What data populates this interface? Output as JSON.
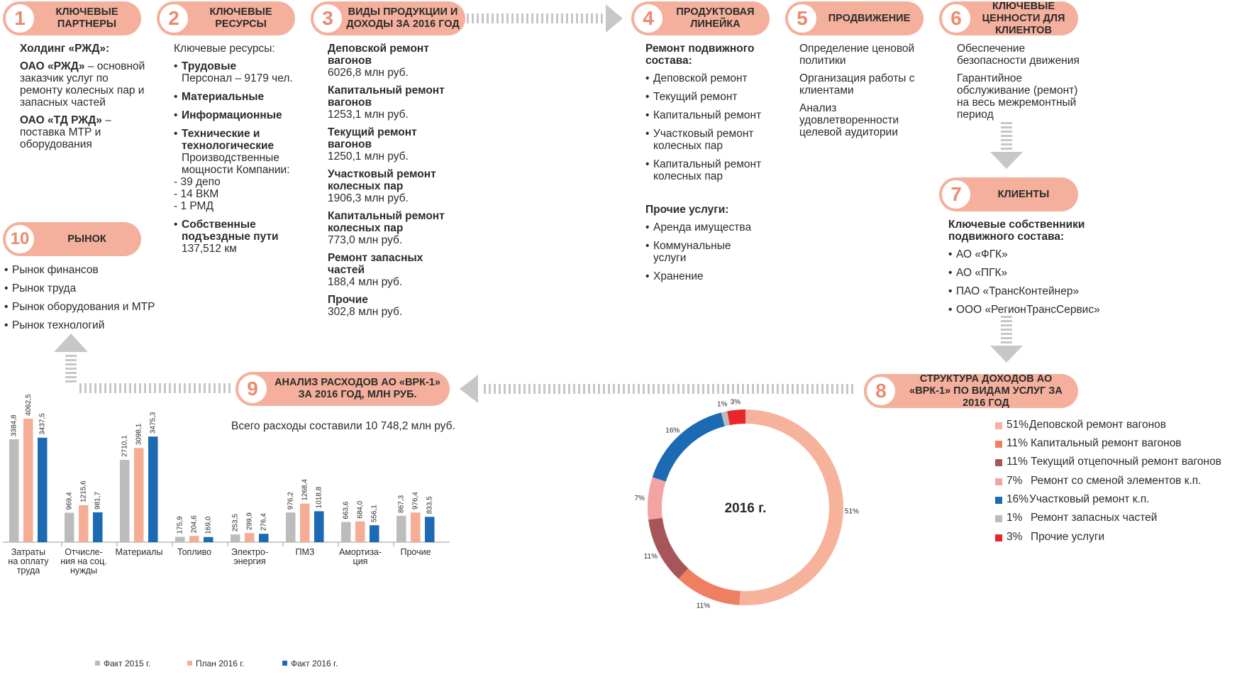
{
  "colors": {
    "accent": "#f4b09c",
    "accent_dark": "#ec8a6e",
    "arrow": "#c7c7c7",
    "fact2015": "#bcbcbc",
    "plan2016": "#f5ad95",
    "fact2016": "#1b6ab3"
  },
  "blocks": [
    {
      "num": "1",
      "title": "КЛЮЧЕВЫЕ ПАРТНЕРЫ"
    },
    {
      "num": "2",
      "title": "КЛЮЧЕВЫЕ РЕСУРСЫ"
    },
    {
      "num": "3",
      "title": "ВИДЫ ПРОДУКЦИИ И ДОХОДЫ ЗА 2016 ГОД"
    },
    {
      "num": "4",
      "title": "ПРОДУКТОВАЯ ЛИНЕЙКА"
    },
    {
      "num": "5",
      "title": "ПРОДВИЖЕНИЕ"
    },
    {
      "num": "6",
      "title": "КЛЮЧЕВЫЕ ЦЕННОСТИ ДЛЯ КЛИЕНТОВ"
    },
    {
      "num": "7",
      "title": "КЛИЕНТЫ"
    },
    {
      "num": "8",
      "title": "СТРУКТУРА ДОХОДОВ АО «ВРК-1» ПО ВИДАМ УСЛУГ ЗА 2016 ГОД"
    },
    {
      "num": "9",
      "title": "АНАЛИЗ РАСХОДОВ АО «ВРК-1» ЗА 2016 ГОД, МЛН РУБ."
    },
    {
      "num": "10",
      "title": "РЫНОК"
    }
  ],
  "partners": {
    "holding": "Холдинг «РЖД»:",
    "p1_name": "ОАО «РЖД»",
    "p1_desc": "– основной заказчик услуг по ремонту колесных пар и запасных частей",
    "p2_name": "ОАО «ТД РЖД»",
    "p2_desc": "– поставка МТР и оборудования"
  },
  "resources": {
    "intro": "Ключевые ресурсы:",
    "labor": "Трудовые",
    "staff": "Персонал – 9179 чел.",
    "material": "Материальные",
    "info": "Информационные",
    "tech": "Технические и технологические",
    "capacity": "Производственные мощности Компании:",
    "cap_items": [
      "39 депо",
      "14 ВКМ",
      "1   РМД"
    ],
    "tracks": "Собственные подъездные пути",
    "tracks_val": "137,512 км"
  },
  "products": [
    {
      "name": "Деповской ремонт вагонов",
      "value": "6026,8 млн руб."
    },
    {
      "name": "Капитальный ремонт вагонов",
      "value": "1253,1 млн руб."
    },
    {
      "name": "Текущий ремонт вагонов",
      "value": "1250,1 млн руб."
    },
    {
      "name": "Участковый ремонт колесных пар",
      "value": "1906,3 млн руб."
    },
    {
      "name": "Капитальный ремонт колесных пар",
      "value": "773,0 млн руб."
    },
    {
      "name": "Ремонт запасных частей",
      "value": "188,4 млн руб."
    },
    {
      "name": "Прочие",
      "value": "302,8 млн руб."
    }
  ],
  "lineup": {
    "heading": "Ремонт подвижного состава:",
    "items": [
      "Деповской ремонт",
      "Текущий ремонт",
      "Капитальный ремонт",
      "Участковый ремонт колесных пар",
      "Капитальный ремонт колесных пар"
    ],
    "other_heading": "Прочие услуги:",
    "other_items": [
      "Аренда имущества",
      "Коммунальные услуги",
      "Хранение"
    ]
  },
  "promotion": [
    "Определение ценовой политики",
    "Организация работы с клиентами",
    "Анализ удовлетворенности целевой аудитории"
  ],
  "values": [
    "Обеспечение безопасности движения",
    "Гарантийное обслуживание (ремонт) на весь межремонтный период"
  ],
  "clients": {
    "heading": "Ключевые собственники подвижного состава:",
    "items": [
      "АО «ФГК»",
      "АО «ПГК»",
      "ПАО «ТрансКонтейнер»",
      "ООО «РегионТрансСервис»"
    ]
  },
  "market": [
    "Рынок финансов",
    "Рынок труда",
    "Рынок оборудования и МТР",
    "Рынок технологий"
  ],
  "expenses_total": "Всего расходы составили 10 748,2 млн руб.",
  "chart_data": [
    {
      "type": "bar",
      "categories": [
        "Затраты на оплату труда",
        "Отчисле-ния на соц. нужды",
        "Материалы",
        "Топливо",
        "Электро-энергия",
        "ПМЗ",
        "Амортиза-ция",
        "Прочие"
      ],
      "series": [
        {
          "name": "Факт 2015 г.",
          "values": [
            3384.8,
            969.4,
            2710.1,
            175.9,
            253.5,
            976.2,
            663.6,
            867.3
          ],
          "labels": [
            "3384,8",
            "969,4",
            "2710,1",
            "175,9",
            "253,5",
            "976,2",
            "663,6",
            "867,3"
          ],
          "color": "#bcbcbc"
        },
        {
          "name": "План 2016 г.",
          "values": [
            4062.5,
            1215.6,
            3098.1,
            204.6,
            299.9,
            1268.4,
            684.0,
            976.4
          ],
          "labels": [
            "4062,5",
            "1215,6",
            "3098,1",
            "204,6",
            "299,9",
            "1268,4",
            "684,0",
            "976,4"
          ],
          "color": "#f5ad95"
        },
        {
          "name": "Факт 2016 г.",
          "values": [
            3437.5,
            981.7,
            3475.3,
            169.0,
            276.4,
            1018.8,
            556.1,
            833.5
          ],
          "labels": [
            "3437,5",
            "981,7",
            "3475,3",
            "169,0",
            "276,4",
            "1018,8",
            "556,1",
            "833,5"
          ],
          "color": "#1b6ab3"
        }
      ]
    },
    {
      "type": "pie",
      "title": "2016 г.",
      "slices": [
        {
          "label": "Деповской ремонт вагонов",
          "pct_text": "51%",
          "value": 51,
          "color": "#f6b29b"
        },
        {
          "label": "Капитальный ремонт вагонов",
          "pct_text": "11%",
          "value": 11,
          "color": "#ee7f60"
        },
        {
          "label": "Текущий отцепочный ремонт вагонов",
          "pct_text": "11%",
          "value": 11,
          "color": "#a8555a"
        },
        {
          "label": "Ремонт со сменой элементов к.п.",
          "pct_text": "7%",
          "value": 7,
          "color": "#f4a3a4"
        },
        {
          "label": "Участковый ремонт к.п.",
          "pct_text": "16%",
          "value": 16,
          "color": "#1b6ab3"
        },
        {
          "label": "Ремонт запасных частей",
          "pct_text": "1%",
          "value": 1,
          "color": "#bcbcbc"
        },
        {
          "label": "Прочие услуги",
          "pct_text": "3%",
          "value": 3,
          "color": "#e8262c"
        }
      ]
    }
  ]
}
